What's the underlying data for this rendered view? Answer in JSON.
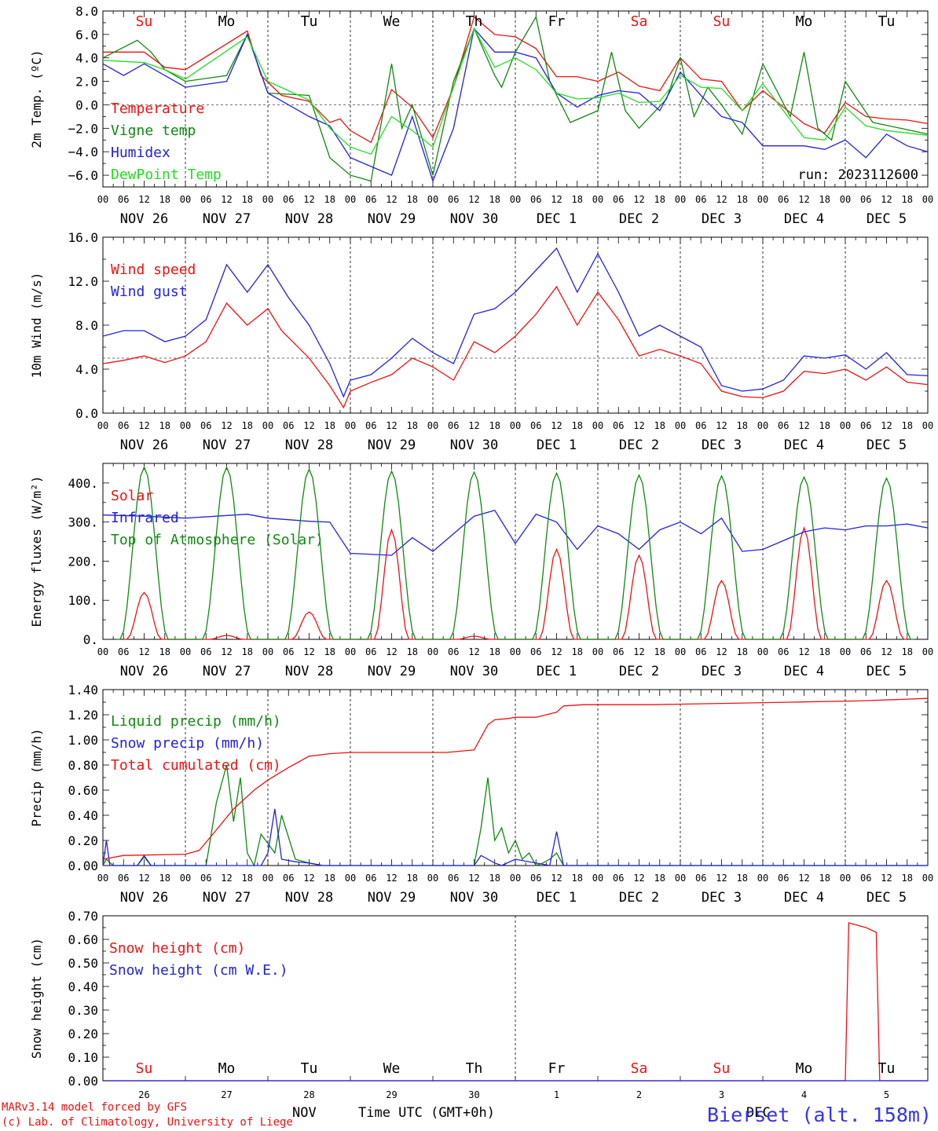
{
  "footer": {
    "model_line": "MARv3.14 model forced by GFS",
    "credit_line": "(c) Lab. of Climatology, University of Liege",
    "x_axis_title": "Time UTC (GMT+0h)",
    "month_nov": "NOV",
    "month_dec": "DEC",
    "station": "Bierset (alt. 158m)"
  },
  "colors": {
    "red": "#ee1111",
    "green": "#118811",
    "blue": "#2222dd",
    "light_green": "#22dd22",
    "station_blue": "#3333ee"
  },
  "day_labels": [
    "Su",
    "Mo",
    "Tu",
    "We",
    "Th",
    "Fr",
    "Sa",
    "Su",
    "Mo",
    "Tu"
  ],
  "weekend_days": [
    0,
    6,
    7
  ],
  "date_labels": [
    "NOV 26",
    "NOV 27",
    "NOV 28",
    "NOV 29",
    "NOV 30",
    "DEC  1",
    "DEC  2",
    "DEC  3",
    "DEC  4",
    "DEC  5"
  ],
  "day_numbers": [
    "26",
    "27",
    "28",
    "29",
    "30",
    "1",
    "2",
    "3",
    "4",
    "5"
  ],
  "hour_labels": [
    "00",
    "06",
    "12",
    "18"
  ],
  "final_hour_label": "00",
  "chart_data": [
    {
      "type": "line",
      "ylabel": "2m Temp. (ºC)",
      "ylim": [
        -7,
        8
      ],
      "yticks": [
        "8.0",
        "6.0",
        "4.0",
        "2.0",
        "0.0",
        "−2.0",
        "−4.0",
        "−6.0"
      ],
      "ytick_values": [
        8,
        6,
        4,
        2,
        0,
        -2,
        -4,
        -6
      ],
      "ref_line": 0,
      "annotation": "run: 2023112600",
      "x_unit": "hours since 00 UTC NOV 26",
      "series": [
        {
          "name": "Temperature",
          "color": "red",
          "x": [
            0,
            12,
            18,
            24,
            42,
            46,
            52,
            60,
            66,
            69,
            72,
            78,
            84,
            90,
            96,
            102,
            108,
            114,
            120,
            126,
            132,
            138,
            144,
            150,
            156,
            162,
            168,
            174,
            180,
            186,
            192,
            204,
            210,
            216,
            222,
            228,
            234,
            240
          ],
          "y": [
            4.5,
            4.5,
            3.2,
            3.0,
            6.3,
            2.5,
            0.8,
            0.3,
            -1.5,
            -1.2,
            -2.2,
            -3.2,
            1.3,
            -0.2,
            -2.8,
            1.5,
            7.5,
            6.0,
            5.8,
            4.8,
            2.4,
            2.4,
            2.0,
            2.8,
            1.6,
            1.2,
            4.0,
            2.2,
            2.0,
            -0.5,
            1.2,
            -1.6,
            -2.4,
            0.2,
            -1.0,
            -1.2,
            -1.3,
            -1.6
          ]
        },
        {
          "name": "Vigne temp",
          "color": "green",
          "x": [
            0,
            10,
            14,
            18,
            24,
            36,
            42,
            48,
            60,
            66,
            72,
            78,
            84,
            87,
            90,
            96,
            102,
            108,
            114,
            116,
            120,
            126,
            130,
            136,
            144,
            148,
            152,
            156,
            164,
            168,
            172,
            176,
            180,
            186,
            192,
            200,
            204,
            208,
            212,
            216,
            224,
            232,
            240
          ],
          "y": [
            4.0,
            5.5,
            4.5,
            3.0,
            2.0,
            2.5,
            6.0,
            1.0,
            0.8,
            -4.5,
            -6.0,
            -6.5,
            3.5,
            -2.0,
            0.0,
            -6.0,
            2.0,
            6.5,
            2.5,
            1.5,
            4.5,
            7.5,
            2.0,
            -1.5,
            -0.5,
            4.5,
            -0.5,
            -2.0,
            0.5,
            4.0,
            -1.0,
            1.5,
            0.0,
            -2.5,
            3.5,
            -1.0,
            4.5,
            -2.0,
            -3.0,
            2.0,
            -1.5,
            -2.0,
            -2.5
          ]
        },
        {
          "name": "Humidex",
          "color": "blue",
          "x": [
            0,
            6,
            12,
            18,
            24,
            36,
            42,
            48,
            60,
            66,
            72,
            84,
            90,
            96,
            102,
            108,
            114,
            120,
            126,
            132,
            138,
            144,
            150,
            156,
            162,
            168,
            174,
            180,
            186,
            192,
            204,
            210,
            216,
            222,
            228,
            234,
            240
          ],
          "y": [
            3.5,
            2.5,
            3.5,
            2.5,
            1.5,
            2.0,
            6.0,
            1.0,
            -1.0,
            -1.8,
            -4.5,
            -6.0,
            -1.0,
            -6.5,
            -2.0,
            6.5,
            4.5,
            4.5,
            4.0,
            1.0,
            -0.2,
            0.8,
            1.2,
            1.0,
            -0.5,
            2.8,
            0.8,
            -1.0,
            -1.5,
            -3.5,
            -3.5,
            -3.8,
            -3.0,
            -4.5,
            -2.5,
            -3.5,
            -4.0
          ]
        },
        {
          "name": "DewPoint Temp",
          "color": "light_green",
          "x": [
            0,
            12,
            18,
            24,
            42,
            48,
            60,
            66,
            72,
            78,
            84,
            90,
            96,
            102,
            108,
            114,
            120,
            126,
            132,
            138,
            144,
            150,
            156,
            162,
            168,
            174,
            180,
            186,
            192,
            204,
            210,
            216,
            222,
            228,
            234,
            240
          ],
          "y": [
            3.8,
            3.6,
            3.0,
            2.2,
            5.8,
            2.0,
            0.4,
            -2.0,
            -3.6,
            -4.2,
            -1.0,
            -2.2,
            -3.6,
            1.5,
            6.5,
            3.2,
            4.0,
            3.0,
            1.0,
            0.5,
            0.6,
            1.0,
            0.2,
            0.3,
            2.5,
            1.5,
            1.4,
            -0.5,
            1.8,
            -2.8,
            -3.0,
            -0.2,
            -1.8,
            -2.2,
            -2.4,
            -2.6
          ]
        }
      ]
    },
    {
      "type": "line",
      "ylabel": "10m Wind (m/s)",
      "ylim": [
        0,
        16
      ],
      "yticks": [
        "16.0",
        "12.0",
        "8.0",
        "4.0",
        "0.0"
      ],
      "ytick_values": [
        16,
        12,
        8,
        4,
        0
      ],
      "ref_line": 5,
      "x_unit": "hours since 00 UTC NOV 26",
      "series": [
        {
          "name": "Wind speed",
          "color": "red",
          "x": [
            0,
            6,
            12,
            18,
            24,
            30,
            36,
            42,
            48,
            52,
            60,
            66,
            70,
            72,
            78,
            84,
            90,
            96,
            102,
            108,
            114,
            120,
            126,
            132,
            138,
            144,
            150,
            156,
            162,
            168,
            174,
            180,
            186,
            192,
            198,
            204,
            210,
            216,
            222,
            228,
            234,
            240
          ],
          "y": [
            4.5,
            4.8,
            5.2,
            4.6,
            5.2,
            6.5,
            10.0,
            8.0,
            9.5,
            7.5,
            5.0,
            2.5,
            0.5,
            2.0,
            2.8,
            3.5,
            5.0,
            4.2,
            3.0,
            6.5,
            5.5,
            7.0,
            9.0,
            11.5,
            8.0,
            11.0,
            8.5,
            5.2,
            5.8,
            5.2,
            4.5,
            2.0,
            1.5,
            1.4,
            2.0,
            3.8,
            3.6,
            4.0,
            3.0,
            4.2,
            2.8,
            2.6
          ]
        },
        {
          "name": "Wind gust",
          "color": "blue",
          "x": [
            0,
            6,
            12,
            18,
            24,
            30,
            36,
            42,
            48,
            54,
            60,
            66,
            70,
            72,
            78,
            84,
            90,
            96,
            102,
            108,
            114,
            120,
            126,
            132,
            138,
            144,
            150,
            156,
            162,
            168,
            174,
            180,
            186,
            192,
            198,
            204,
            210,
            216,
            222,
            228,
            234,
            240
          ],
          "y": [
            7.0,
            7.5,
            7.5,
            6.5,
            7.0,
            8.5,
            13.5,
            11.0,
            13.5,
            10.5,
            8.0,
            4.5,
            1.5,
            3.0,
            3.5,
            5.0,
            6.8,
            5.5,
            4.5,
            9.0,
            9.5,
            11.0,
            13.0,
            15.0,
            11.0,
            14.5,
            11.0,
            7.0,
            8.0,
            7.0,
            6.0,
            2.5,
            2.0,
            2.2,
            3.0,
            5.2,
            5.0,
            5.3,
            4.0,
            5.5,
            3.5,
            3.4
          ]
        }
      ]
    },
    {
      "type": "line",
      "ylabel": "Energy fluxes (W/m²)",
      "ylim": [
        0,
        450
      ],
      "yticks": [
        "400.",
        "300.",
        "200.",
        "100.",
        "0."
      ],
      "ytick_values": [
        400,
        300,
        200,
        100,
        0
      ],
      "x_unit": "hours since 00 UTC NOV 26",
      "series": [
        {
          "name": "Solar",
          "color": "red",
          "peaks": [
            120,
            10,
            70,
            280,
            8,
            230,
            215,
            150,
            285,
            150
          ],
          "peak_hour": 12,
          "halfwidth": 5
        },
        {
          "name": "Infrared",
          "color": "blue",
          "x": [
            0,
            12,
            24,
            42,
            48,
            60,
            66,
            72,
            84,
            90,
            96,
            102,
            108,
            114,
            120,
            126,
            132,
            138,
            144,
            150,
            156,
            162,
            168,
            174,
            180,
            186,
            192,
            204,
            210,
            216,
            222,
            228,
            234,
            240
          ],
          "y": [
            318,
            315,
            310,
            320,
            310,
            302,
            300,
            220,
            215,
            260,
            225,
            270,
            315,
            330,
            245,
            320,
            300,
            230,
            290,
            270,
            230,
            280,
            300,
            270,
            310,
            225,
            230,
            275,
            285,
            280,
            290,
            290,
            295,
            285
          ]
        },
        {
          "name": "Top of Atmosphere (Solar)",
          "color": "green",
          "peaks": [
            440,
            440,
            435,
            430,
            428,
            425,
            420,
            418,
            415,
            412
          ],
          "peak_hour": 12,
          "halfwidth": 7
        }
      ]
    },
    {
      "type": "line",
      "ylabel": "Precip (mm/h)",
      "ylim": [
        0,
        1.4
      ],
      "yticks": [
        "1.40",
        "1.20",
        "1.00",
        "0.80",
        "0.60",
        "0.40",
        "0.20",
        "0.00"
      ],
      "ytick_values": [
        1.4,
        1.2,
        1.0,
        0.8,
        0.6,
        0.4,
        0.2,
        0.0
      ],
      "x_unit": "hours since 00 UTC NOV 26",
      "series": [
        {
          "name": "Liquid precip (mm/h)",
          "color": "green",
          "x": [
            0,
            1,
            3,
            10,
            12,
            14,
            24,
            30,
            33,
            36,
            38,
            40,
            42,
            44,
            46,
            50,
            52,
            56,
            60,
            64,
            108,
            110,
            112,
            114,
            116,
            118,
            120,
            122,
            124,
            126,
            128,
            130,
            132,
            134,
            140,
            240
          ],
          "y": [
            0,
            0.05,
            0,
            0,
            0.08,
            0,
            0,
            0,
            0.5,
            0.8,
            0.35,
            0.7,
            0.1,
            0,
            0.25,
            0.1,
            0.4,
            0.05,
            0.02,
            0,
            0,
            0.3,
            0.7,
            0.2,
            0.3,
            0.1,
            0.2,
            0.05,
            0.1,
            0,
            0.02,
            0.05,
            0.1,
            0,
            0,
            0
          ]
        },
        {
          "name": "Snow precip (mm/h)",
          "color": "blue",
          "x": [
            0,
            1,
            2,
            10,
            12,
            14,
            46,
            48,
            50,
            52,
            56,
            60,
            64,
            108,
            110,
            114,
            116,
            120,
            130,
            132,
            134,
            140,
            240
          ],
          "y": [
            0,
            0.2,
            0,
            0,
            0.07,
            0,
            0,
            0.1,
            0.45,
            0.05,
            0.03,
            0.02,
            0,
            0,
            0.08,
            0.02,
            0,
            0.05,
            0,
            0.27,
            0,
            0,
            0
          ]
        },
        {
          "name": "Total cumulated (cm)",
          "color": "red",
          "x": [
            0,
            6,
            24,
            28,
            32,
            38,
            44,
            48,
            54,
            60,
            66,
            72,
            84,
            96,
            100,
            108,
            110,
            112,
            114,
            118,
            120,
            126,
            132,
            134,
            140,
            150,
            160,
            170,
            180,
            200,
            220,
            240
          ],
          "y": [
            0.05,
            0.08,
            0.09,
            0.12,
            0.25,
            0.45,
            0.6,
            0.68,
            0.78,
            0.87,
            0.89,
            0.9,
            0.9,
            0.9,
            0.9,
            0.92,
            1.02,
            1.12,
            1.16,
            1.17,
            1.18,
            1.18,
            1.22,
            1.27,
            1.28,
            1.28,
            1.28,
            1.285,
            1.29,
            1.3,
            1.31,
            1.33
          ]
        }
      ]
    },
    {
      "type": "line",
      "ylabel": "Snow height (cm)",
      "ylim": [
        0,
        0.7
      ],
      "yticks": [
        "0.70",
        "0.60",
        "0.50",
        "0.40",
        "0.30",
        "0.20",
        "0.10",
        "0.00"
      ],
      "ytick_values": [
        0.7,
        0.6,
        0.5,
        0.4,
        0.3,
        0.2,
        0.1,
        0.0
      ],
      "x_unit": "hours since 00 UTC NOV 26",
      "series": [
        {
          "name": "Snow height (cm)",
          "color": "red",
          "x": [
            0,
            216,
            217,
            222,
            225,
            226,
            240
          ],
          "y": [
            0,
            0,
            0.67,
            0.65,
            0.63,
            0,
            0
          ]
        },
        {
          "name": "Snow height (cm W.E.)",
          "color": "blue",
          "x": [
            0,
            240
          ],
          "y": [
            0,
            0
          ]
        }
      ]
    }
  ]
}
